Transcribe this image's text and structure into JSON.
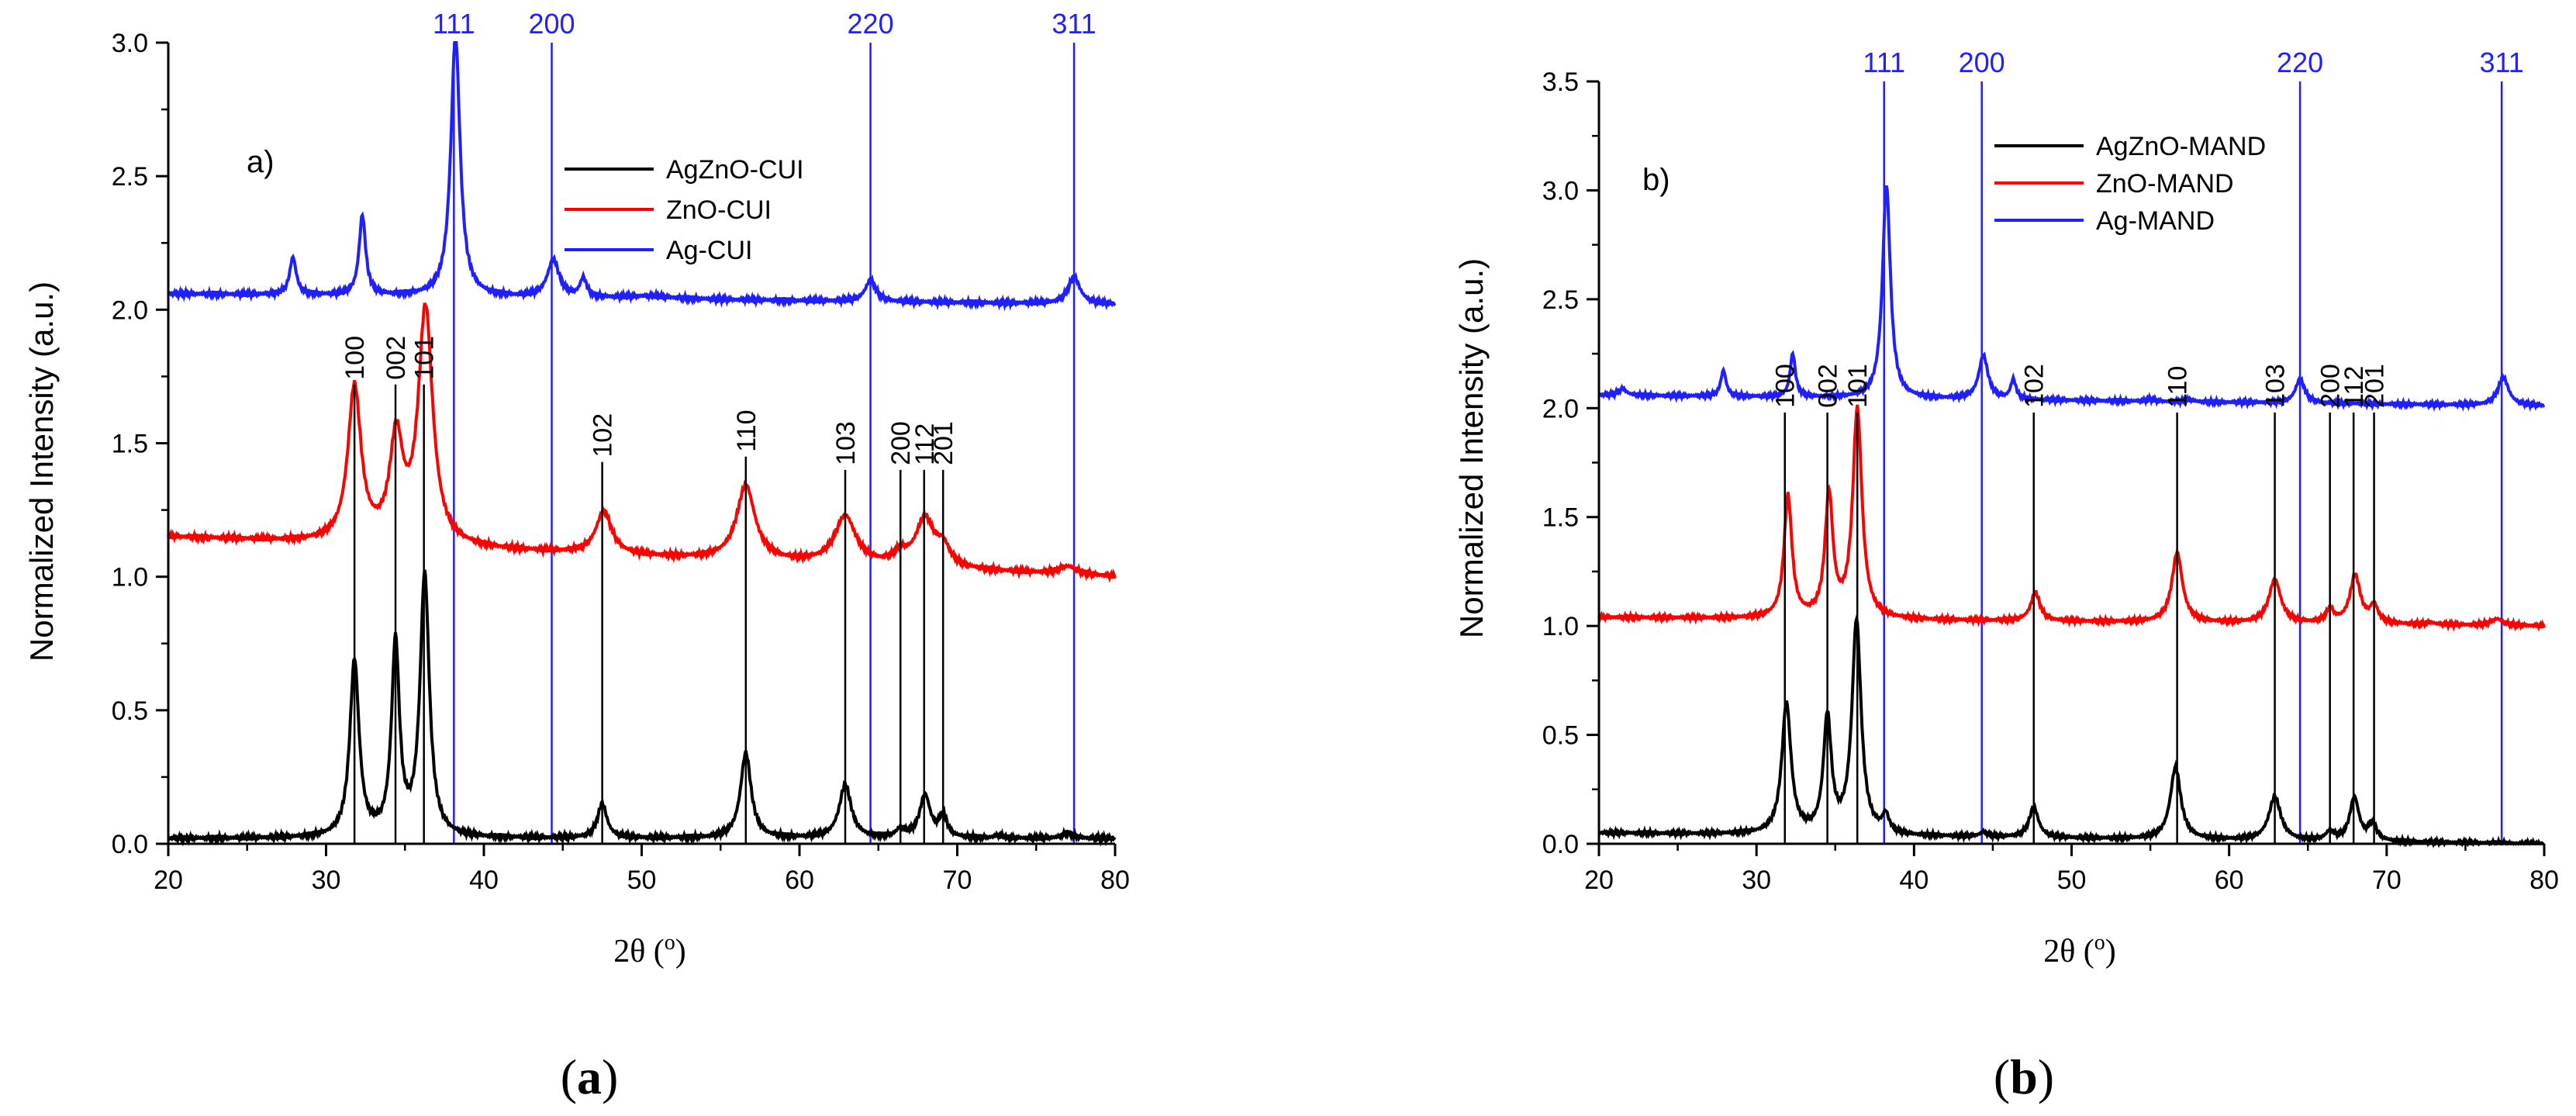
{
  "chart_data": [
    {
      "type": "line",
      "panel_tag": "a)",
      "caption_open": "(",
      "caption_letter": "a",
      "caption_close": ")",
      "xlabel_theta": "2θ (",
      "xlabel_deg": "o",
      "xlabel_close": ")",
      "ylabel": "Normalized Intensity (a.u.)",
      "xlim": [
        20,
        80
      ],
      "ylim": [
        0,
        3.0
      ],
      "xticks": [
        20,
        30,
        40,
        50,
        60,
        70,
        80
      ],
      "yticks": [
        0.0,
        0.5,
        1.0,
        1.5,
        2.0,
        2.5,
        3.0
      ],
      "ytick_labels": [
        "0.0",
        "0.5",
        "1.0",
        "1.5",
        "2.0",
        "2.5",
        "3.0"
      ],
      "legend": [
        {
          "name": "AgZnO-CUI",
          "color": "#000000"
        },
        {
          "name": "ZnO-CUI",
          "color": "#ff0000"
        },
        {
          "name": "Ag-CUI",
          "color": "#1f1fff"
        }
      ],
      "ag_reflections": [
        {
          "label": "111",
          "x": 38.1
        },
        {
          "label": "200",
          "x": 44.3
        },
        {
          "label": "220",
          "x": 64.5
        },
        {
          "label": "311",
          "x": 77.4
        }
      ],
      "zno_reflections": [
        {
          "label": "100",
          "x": 31.8,
          "top": 1.72
        },
        {
          "label": "002",
          "x": 34.4,
          "top": 1.72
        },
        {
          "label": "101",
          "x": 36.2,
          "top": 1.72
        },
        {
          "label": "102",
          "x": 47.5,
          "top": 1.43
        },
        {
          "label": "110",
          "x": 56.6,
          "top": 1.45
        },
        {
          "label": "103",
          "x": 62.9,
          "top": 1.4
        },
        {
          "label": "200",
          "x": 66.4,
          "top": 1.4
        },
        {
          "label": "112",
          "x": 67.9,
          "top": 1.4
        },
        {
          "label": "201",
          "x": 69.1,
          "top": 1.4
        }
      ],
      "series": [
        {
          "name": "AgZnO-CUI",
          "color": "#000000",
          "baseline": 0.02,
          "peaks": [
            [
              31.8,
              0.66,
              0.35
            ],
            [
              34.4,
              0.72,
              0.3
            ],
            [
              36.25,
              0.98,
              0.35
            ],
            [
              47.5,
              0.13,
              0.35
            ],
            [
              56.6,
              0.32,
              0.4
            ],
            [
              62.9,
              0.2,
              0.45
            ],
            [
              66.4,
              0.03,
              0.3
            ],
            [
              67.95,
              0.16,
              0.4
            ],
            [
              69.1,
              0.08,
              0.3
            ],
            [
              72.6,
              0.01,
              0.3
            ],
            [
              77.0,
              0.02,
              0.4
            ]
          ]
        },
        {
          "name": "ZnO-CUI",
          "color": "#ff0000",
          "baseline_start": 1.15,
          "baseline_end": 1.0,
          "peaks": [
            [
              31.8,
              0.58,
              0.5
            ],
            [
              34.45,
              0.38,
              0.5
            ],
            [
              36.3,
              0.88,
              0.55
            ],
            [
              47.6,
              0.16,
              0.6
            ],
            [
              56.6,
              0.28,
              0.7
            ],
            [
              62.9,
              0.18,
              0.8
            ],
            [
              66.4,
              0.04,
              0.5
            ],
            [
              67.95,
              0.18,
              0.7
            ],
            [
              69.1,
              0.07,
              0.5
            ],
            [
              77.0,
              0.03,
              0.7
            ]
          ]
        },
        {
          "name": "Ag-CUI",
          "color": "#1f1fff",
          "baseline_start": 2.06,
          "baseline_end": 2.02,
          "peaks": [
            [
              27.9,
              0.14,
              0.25
            ],
            [
              32.3,
              0.3,
              0.25
            ],
            [
              38.2,
              0.98,
              0.35
            ],
            [
              44.4,
              0.14,
              0.45
            ],
            [
              46.3,
              0.07,
              0.25
            ],
            [
              64.5,
              0.08,
              0.4
            ],
            [
              77.4,
              0.1,
              0.45
            ],
            [
              50.5,
              0.01,
              2.0
            ]
          ]
        }
      ]
    },
    {
      "type": "line",
      "panel_tag": "b)",
      "caption_open": "(",
      "caption_letter": "b",
      "caption_close": ")",
      "xlabel_theta": "2θ (",
      "xlabel_deg": "o",
      "xlabel_close": ")",
      "ylabel": "Normalized Intensity (a.u.)",
      "xlim": [
        20,
        80
      ],
      "ylim": [
        0,
        3.5
      ],
      "xticks": [
        20,
        30,
        40,
        50,
        60,
        70,
        80
      ],
      "yticks": [
        0.0,
        0.5,
        1.0,
        1.5,
        2.0,
        2.5,
        3.0,
        3.5
      ],
      "ytick_labels": [
        "0.0",
        "0.5",
        "1.0",
        "1.5",
        "2.0",
        "2.5",
        "3.0",
        "3.5"
      ],
      "legend": [
        {
          "name": "AgZnO-MAND",
          "color": "#000000"
        },
        {
          "name": "ZnO-MAND",
          "color": "#ff0000"
        },
        {
          "name": "Ag-MAND",
          "color": "#1f1fff"
        }
      ],
      "ag_reflections": [
        {
          "label": "111",
          "x": 38.1
        },
        {
          "label": "200",
          "x": 44.3
        },
        {
          "label": "220",
          "x": 64.5
        },
        {
          "label": "311",
          "x": 77.3
        }
      ],
      "zno_reflections": [
        {
          "label": "100",
          "x": 31.8,
          "top": 1.98
        },
        {
          "label": "002",
          "x": 34.5,
          "top": 1.98
        },
        {
          "label": "101",
          "x": 36.4,
          "top": 1.98
        },
        {
          "label": "102",
          "x": 47.6,
          "top": 1.98
        },
        {
          "label": "110",
          "x": 56.7,
          "top": 1.98
        },
        {
          "label": "103",
          "x": 62.9,
          "top": 1.98
        },
        {
          "label": "200",
          "x": 66.4,
          "top": 1.98
        },
        {
          "label": "112",
          "x": 67.9,
          "top": 1.98
        },
        {
          "label": "201",
          "x": 69.2,
          "top": 1.98
        }
      ],
      "series": [
        {
          "name": "AgZnO-MAND",
          "color": "#000000",
          "baseline_start": 0.05,
          "baseline_end": 0.0,
          "peaks": [
            [
              31.9,
              0.6,
              0.35
            ],
            [
              34.5,
              0.53,
              0.3
            ],
            [
              36.35,
              0.98,
              0.35
            ],
            [
              38.2,
              0.08,
              0.25
            ],
            [
              47.6,
              0.14,
              0.35
            ],
            [
              56.6,
              0.33,
              0.4
            ],
            [
              62.9,
              0.2,
              0.45
            ],
            [
              66.4,
              0.04,
              0.3
            ],
            [
              67.95,
              0.2,
              0.35
            ],
            [
              69.1,
              0.08,
              0.3
            ],
            [
              44.4,
              0.02,
              0.3
            ]
          ]
        },
        {
          "name": "ZnO-MAND",
          "color": "#ff0000",
          "baseline_start": 1.04,
          "baseline_end": 1.0,
          "peaks": [
            [
              32.0,
              0.56,
              0.3
            ],
            [
              34.6,
              0.56,
              0.3
            ],
            [
              36.4,
              0.96,
              0.35
            ],
            [
              47.7,
              0.13,
              0.35
            ],
            [
              56.7,
              0.32,
              0.4
            ],
            [
              62.9,
              0.2,
              0.45
            ],
            [
              66.4,
              0.06,
              0.3
            ],
            [
              68.0,
              0.22,
              0.4
            ],
            [
              69.2,
              0.08,
              0.3
            ],
            [
              72.8,
              0.01,
              0.3
            ],
            [
              77.0,
              0.03,
              0.45
            ]
          ]
        },
        {
          "name": "Ag-MAND",
          "color": "#1f1fff",
          "baseline_start": 2.06,
          "baseline_end": 2.01,
          "peaks": [
            [
              21.5,
              0.03,
              0.3
            ],
            [
              27.9,
              0.12,
              0.2
            ],
            [
              32.3,
              0.2,
              0.2
            ],
            [
              38.25,
              0.98,
              0.3
            ],
            [
              44.4,
              0.2,
              0.35
            ],
            [
              46.3,
              0.09,
              0.2
            ],
            [
              64.5,
              0.11,
              0.35
            ],
            [
              77.4,
              0.13,
              0.4
            ],
            [
              57.5,
              0.01,
              0.3
            ],
            [
              55.0,
              0.01,
              0.3
            ]
          ]
        }
      ]
    }
  ]
}
